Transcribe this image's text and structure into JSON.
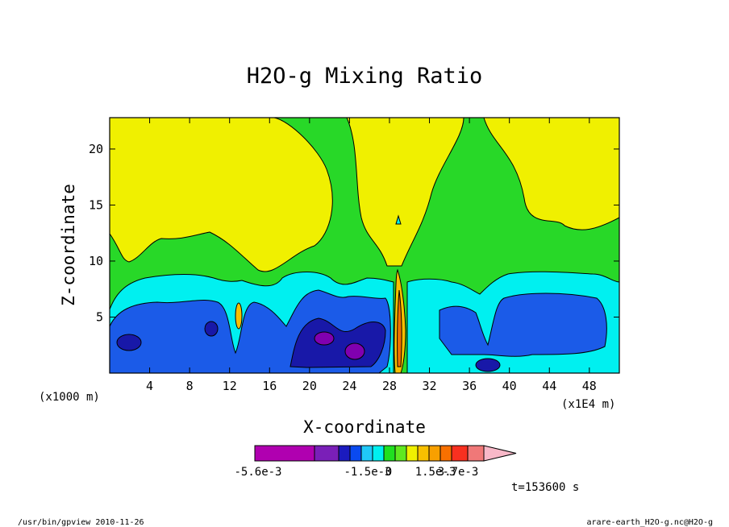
{
  "chart_data": {
    "type": "heatmap",
    "title": "H2O-g Mixing Ratio",
    "xlabel": "X-coordinate",
    "ylabel": "Z-coordinate",
    "x_unit_note": "(x1000 m)",
    "x_scale_note": "(x1E4 m)",
    "xlim": [
      0,
      51
    ],
    "ylim": [
      0,
      22.8
    ],
    "x_ticks": [
      4,
      8,
      12,
      16,
      20,
      24,
      28,
      32,
      36,
      40,
      44,
      48
    ],
    "y_ticks": [
      5,
      10,
      15,
      20
    ],
    "colorbar": {
      "levels": [
        "-5.6e-3",
        "-1.5e-3",
        "0",
        "1.5e-3",
        "3.7e-3"
      ],
      "colors": [
        "#b000b0",
        "#7a1fb8",
        "#1b1bbf",
        "#0a4af0",
        "#20c8f8",
        "#00f0f0",
        "#20e020",
        "#60e820",
        "#f0f000",
        "#f8c000",
        "#f8a000",
        "#f87000",
        "#f83020",
        "#f07878",
        "#f8b8c8"
      ]
    },
    "fields": {
      "top": "#f0f000",
      "band": "#28d828",
      "shallow": "#00f0f0",
      "mid": "#1b5be8",
      "deep": "#1818a8",
      "core": "#8000b0",
      "jet_hot": "#f07000",
      "jet_warm": "#f8c000"
    },
    "time_label": "t=153600 s"
  },
  "footer": {
    "left": "/usr/bin/gpview  2010-11-26",
    "right": "arare-earth_H2O-g.nc@H2O-g"
  }
}
